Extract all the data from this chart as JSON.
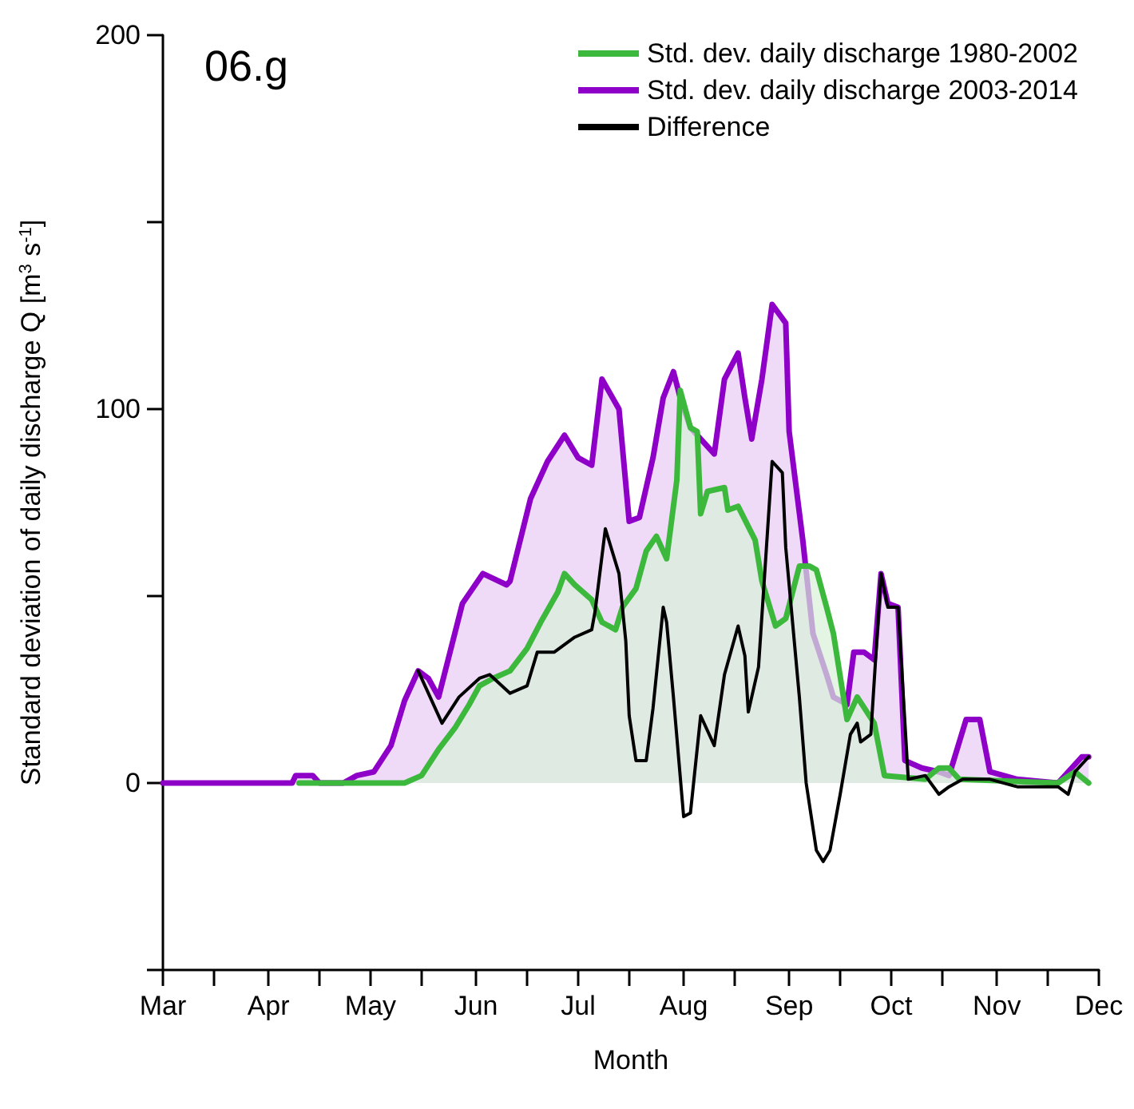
{
  "chart_data": {
    "type": "area",
    "annotations": [
      "06.g"
    ],
    "xlabel": "Month",
    "ylabel": "Standard deviation of daily discharge Q [m$^{3}$ s$^{-1}$]",
    "xlim": [
      "--03-01",
      "--12-01"
    ],
    "xticks": [
      {
        "value": "--03-01",
        "label": "Mar"
      },
      {
        "value": "--03-16",
        "label": null
      },
      {
        "value": "--04-01",
        "label": "Apr"
      },
      {
        "value": "--04-16",
        "label": null
      },
      {
        "value": "--05-01",
        "label": "May"
      },
      {
        "value": "--05-16",
        "label": null
      },
      {
        "value": "--06-01",
        "label": "Jun"
      },
      {
        "value": "--06-16",
        "label": null
      },
      {
        "value": "--07-01",
        "label": "Jul"
      },
      {
        "value": "--07-16",
        "label": null
      },
      {
        "value": "--08-01",
        "label": "Aug"
      },
      {
        "value": "--08-16",
        "label": null
      },
      {
        "value": "--09-01",
        "label": "Sep"
      },
      {
        "value": "--09-16",
        "label": null
      },
      {
        "value": "--10-01",
        "label": "Oct"
      },
      {
        "value": "--10-16",
        "label": null
      },
      {
        "value": "--11-01",
        "label": "Nov"
      },
      {
        "value": "--11-16",
        "label": null
      },
      {
        "value": "--12-01",
        "label": "Dec"
      }
    ],
    "ylim": [
      -50,
      200
    ],
    "yticks": [
      {
        "value": -50,
        "label": null
      },
      0,
      {
        "value": 50,
        "label": null
      },
      100,
      {
        "value": 150,
        "label": null
      },
      200
    ],
    "grid": false,
    "legend": "top right",
    "marker": "none",
    "line_style": "solid",
    "series": [
      {
        "name": "Std. dev. daily discharge 2003-2014",
        "color": "#8e00c8",
        "x": [
          "--03-01",
          "--04-08",
          "--04-09",
          "--04-14",
          "--04-16",
          "--04-23",
          "--04-27",
          "--05-02",
          "--05-07",
          "--05-11",
          "--05-15",
          "--05-18",
          "--05-21",
          "--05-28",
          "--06-03",
          "--06-10",
          "--06-11",
          "--06-17",
          "--06-22",
          "--06-27",
          "--07-01",
          "--07-05",
          "--07-08",
          "--07-13",
          "--07-16",
          "--07-19",
          "--07-23",
          "--07-26",
          "--07-29",
          "--07-31",
          "--08-03",
          "--08-10",
          "--08-13",
          "--08-17",
          "--08-19",
          "--08-21",
          "--08-24",
          "--08-27",
          "--08-31",
          "--09-01",
          "--09-05",
          "--09-08",
          "--09-12",
          "--09-14",
          "--09-18",
          "--09-20",
          "--09-23",
          "--09-26",
          "--09-28",
          "--09-30",
          "--10-03",
          "--10-05",
          "--10-10",
          "--10-15",
          "--10-18",
          "--10-23",
          "--10-27",
          "--10-30",
          "--11-07",
          "--11-19",
          "--11-26",
          "--11-28"
        ],
        "values": [
          0,
          0,
          2,
          2,
          0,
          0,
          2,
          3,
          10,
          22,
          30,
          28,
          23,
          48,
          56,
          53,
          54,
          76,
          86,
          93,
          87,
          85,
          108,
          100,
          70,
          71,
          87,
          103,
          110,
          103,
          95,
          88,
          108,
          115,
          103,
          92,
          108,
          128,
          123,
          94,
          65,
          40,
          29,
          23,
          21,
          35,
          35,
          33,
          56,
          48,
          47,
          6,
          4,
          3,
          2,
          17,
          17,
          3,
          1,
          0,
          7,
          7
        ]
      },
      {
        "name": "Std. dev. daily discharge 1980-2002",
        "color": "#3cb83c",
        "x": [
          "--04-10",
          "--05-11",
          "--05-16",
          "--05-21",
          "--05-26",
          "--05-30",
          "--06-02",
          "--06-06",
          "--06-11",
          "--06-16",
          "--06-20",
          "--06-25",
          "--06-27",
          "--06-30",
          "--07-05",
          "--07-08",
          "--07-12",
          "--07-14",
          "--07-18",
          "--07-21",
          "--07-24",
          "--07-27",
          "--07-30",
          "--07-31",
          "--08-03",
          "--08-05",
          "--08-06",
          "--08-08",
          "--08-13",
          "--08-14",
          "--08-17",
          "--08-22",
          "--08-24",
          "--08-28",
          "--08-31",
          "--09-04",
          "--09-07",
          "--09-09",
          "--09-12",
          "--09-14",
          "--09-18",
          "--09-21",
          "--09-26",
          "--09-29",
          "--10-11",
          "--10-15",
          "--10-18",
          "--10-21",
          "--11-19",
          "--11-24",
          "--11-28"
        ],
        "values": [
          0,
          0,
          2,
          9,
          15,
          21,
          26,
          28,
          30,
          36,
          43,
          51,
          56,
          53,
          49,
          43,
          41,
          47,
          52,
          62,
          66,
          60,
          81,
          105,
          95,
          94,
          72,
          78,
          79,
          73,
          74,
          65,
          54,
          42,
          44,
          58,
          58,
          57,
          47,
          40,
          17,
          23,
          16,
          2,
          1,
          4,
          4,
          1,
          0,
          3,
          0
        ]
      },
      {
        "name": "Difference",
        "type": "line",
        "color": "#000000",
        "x": [
          "--05-15",
          "--05-22",
          "--05-27",
          "--06-02",
          "--06-05",
          "--06-11",
          "--06-16",
          "--06-19",
          "--06-24",
          "--06-30",
          "--07-05",
          "--07-06",
          "--07-09",
          "--07-13",
          "--07-15",
          "--07-16",
          "--07-18",
          "--07-21",
          "--07-23",
          "--07-26",
          "--07-27",
          "--07-29",
          "--08-01",
          "--08-03",
          "--08-06",
          "--08-10",
          "--08-13",
          "--08-17",
          "--08-19",
          "--08-20",
          "--08-23",
          "--08-27",
          "--08-30",
          "--08-31",
          "--09-04",
          "--09-06",
          "--09-09",
          "--09-11",
          "--09-13",
          "--09-16",
          "--09-19",
          "--09-21",
          "--09-22",
          "--09-25",
          "--09-28",
          "--09-30",
          "--10-03",
          "--10-06",
          "--10-11",
          "--10-15",
          "--10-18",
          "--10-22",
          "--10-30",
          "--11-07",
          "--11-19",
          "--11-22",
          "--11-24",
          "--11-28"
        ],
        "values": [
          30,
          16,
          23,
          28,
          29,
          24,
          26,
          35,
          35,
          39,
          41,
          46,
          68,
          56,
          38,
          18,
          6,
          6,
          20,
          47,
          43,
          23,
          -9,
          -8,
          18,
          10,
          29,
          42,
          34,
          19,
          31,
          86,
          83,
          63,
          23,
          0,
          -18,
          -21,
          -18,
          -3,
          13,
          16,
          11,
          13,
          56,
          47,
          47,
          1,
          2,
          -3,
          -1,
          1,
          1,
          -1,
          -1,
          -3,
          3,
          7
        ]
      }
    ]
  }
}
